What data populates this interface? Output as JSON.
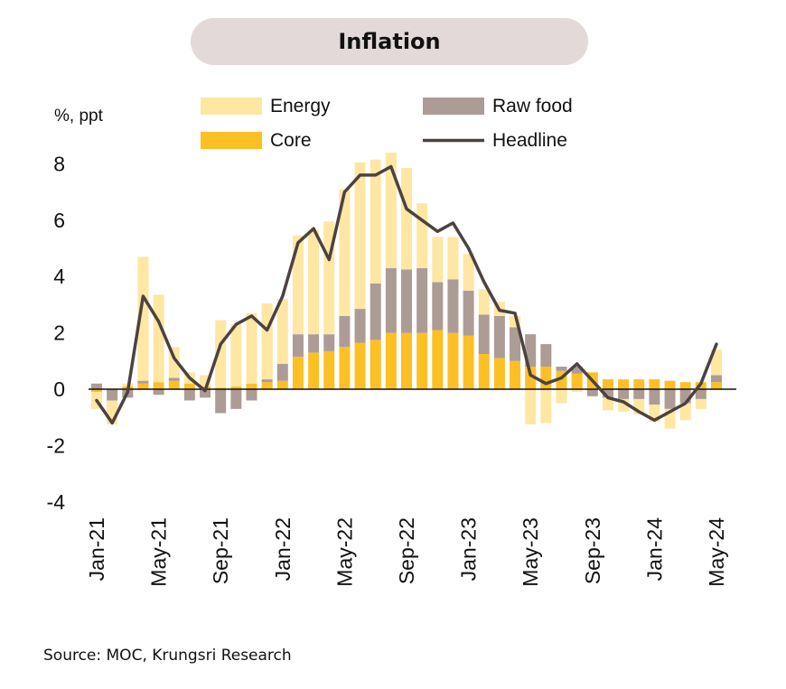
{
  "title": "Inflation",
  "source": "Source: MOC, Krungsri Research",
  "colors": {
    "energy": "#fde7a3",
    "raw_food": "#ad9b96",
    "core": "#fcc025",
    "headline": "#4d4240",
    "axis": "#111111"
  },
  "chart_data": {
    "type": "bar",
    "stacked": true,
    "ylabel": "%, ppt",
    "ylim": [
      -4,
      8
    ],
    "yticks": [
      "8",
      "6",
      "4",
      "2",
      "0",
      "-2",
      "-4"
    ],
    "yticks_values": [
      8,
      6,
      4,
      2,
      0,
      -2,
      -4
    ],
    "grid": false,
    "legend_position": "top",
    "categories": [
      "Jan-21",
      "Feb-21",
      "Mar-21",
      "Apr-21",
      "May-21",
      "Jun-21",
      "Jul-21",
      "Aug-21",
      "Sep-21",
      "Oct-21",
      "Nov-21",
      "Dec-21",
      "Jan-22",
      "Feb-22",
      "Mar-22",
      "Apr-22",
      "May-22",
      "Jun-22",
      "Jul-22",
      "Aug-22",
      "Sep-22",
      "Oct-22",
      "Nov-22",
      "Dec-22",
      "Jan-23",
      "Feb-23",
      "Mar-23",
      "Apr-23",
      "May-23",
      "Jun-23",
      "Jul-23",
      "Aug-23",
      "Sep-23",
      "Oct-23",
      "Nov-23",
      "Dec-23",
      "Jan-24",
      "Feb-24",
      "Mar-24",
      "Apr-24",
      "May-24"
    ],
    "xtick_labels": [
      "Jan-21",
      "May-21",
      "Sep-21",
      "Jan-22",
      "May-22",
      "Sep-22",
      "Jan-23",
      "May-23",
      "Sep-23",
      "Jan-24",
      "May-24"
    ],
    "series": [
      {
        "name": "Core",
        "kind": "bar",
        "values": [
          -0.1,
          0.0,
          0.1,
          0.2,
          0.25,
          0.3,
          0.2,
          0.1,
          0.05,
          0.1,
          0.2,
          0.25,
          0.3,
          1.15,
          1.3,
          1.35,
          1.5,
          1.65,
          1.75,
          2.0,
          2.0,
          2.0,
          2.1,
          2.0,
          1.9,
          1.25,
          1.1,
          1.0,
          0.8,
          0.8,
          0.65,
          0.55,
          0.6,
          0.35,
          0.35,
          0.35,
          0.35,
          0.3,
          0.25,
          0.25,
          0.25
        ]
      },
      {
        "name": "Raw food",
        "kind": "bar",
        "values": [
          0.2,
          -0.4,
          -0.3,
          0.1,
          -0.2,
          0.1,
          -0.4,
          -0.3,
          -0.85,
          -0.7,
          -0.4,
          0.1,
          0.6,
          0.8,
          0.65,
          0.6,
          1.1,
          1.2,
          2.0,
          2.3,
          2.25,
          2.3,
          1.7,
          1.9,
          1.6,
          1.4,
          1.5,
          1.2,
          1.15,
          0.8,
          0.15,
          0.25,
          -0.25,
          -0.3,
          -0.35,
          -0.35,
          -0.55,
          -0.7,
          -0.5,
          -0.35,
          0.25
        ]
      },
      {
        "name": "Energy",
        "kind": "bar",
        "values": [
          -0.6,
          -0.85,
          0.1,
          4.4,
          3.1,
          1.1,
          0.4,
          0.4,
          2.4,
          2.2,
          2.5,
          2.7,
          2.3,
          3.5,
          3.7,
          4.0,
          4.5,
          5.2,
          4.4,
          4.1,
          3.6,
          2.3,
          1.6,
          1.5,
          1.3,
          0.9,
          0.5,
          0.4,
          -1.25,
          -1.2,
          -0.5,
          -0.1,
          0.0,
          -0.45,
          -0.45,
          -0.55,
          -0.6,
          -0.7,
          -0.6,
          -0.35,
          0.9
        ]
      },
      {
        "name": "Headline",
        "kind": "line",
        "values": [
          -0.4,
          -1.2,
          -0.1,
          3.3,
          2.4,
          1.1,
          0.4,
          -0.05,
          1.6,
          2.3,
          2.6,
          2.1,
          3.3,
          5.2,
          5.7,
          4.6,
          7.0,
          7.6,
          7.6,
          7.9,
          6.4,
          6.0,
          5.6,
          5.9,
          5.0,
          3.8,
          2.8,
          2.7,
          0.5,
          0.2,
          0.4,
          0.9,
          0.3,
          -0.3,
          -0.45,
          -0.8,
          -1.1,
          -0.8,
          -0.5,
          0.2,
          1.6
        ]
      }
    ]
  }
}
